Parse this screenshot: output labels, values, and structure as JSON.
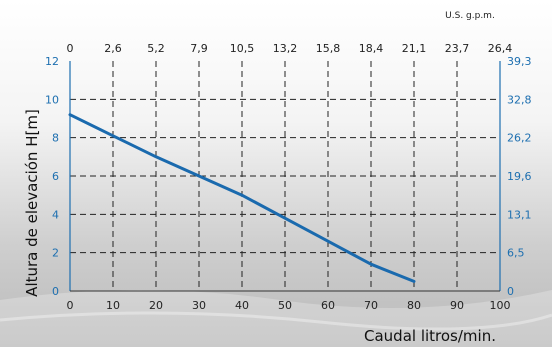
{
  "chart_data": {
    "type": "line",
    "xlabel": "Caudal litros/min.",
    "ylabel": "Altura de elevación  H[m]",
    "top_axis_unit": "U.S. g.p.m.",
    "xlim": [
      0,
      100
    ],
    "ylim": [
      0,
      12
    ],
    "x_ticks": [
      "0",
      "10",
      "20",
      "30",
      "40",
      "50",
      "60",
      "70",
      "80",
      "90",
      "100"
    ],
    "y_ticks": [
      "0",
      "2",
      "4",
      "6",
      "8",
      "10",
      "12"
    ],
    "top_ticks": [
      "0",
      "2,6",
      "5,2",
      "7,9",
      "10,5",
      "13,2",
      "15,8",
      "18,4",
      "21,1",
      "23,7",
      "26,4"
    ],
    "right_ticks": [
      "0",
      "6,5",
      "13,1",
      "19,6",
      "26,2",
      "32,8",
      "39,3"
    ],
    "grid": true,
    "series": [
      {
        "x": [
          0,
          10,
          20,
          30,
          40,
          50,
          60,
          70,
          80
        ],
        "y": [
          9.2,
          8.1,
          7.0,
          6.0,
          5.0,
          3.8,
          2.6,
          1.4,
          0.5
        ]
      }
    ],
    "colors": {
      "line": "#1a6aae",
      "axis": "#1d6fb0",
      "grid": "#222222"
    }
  }
}
